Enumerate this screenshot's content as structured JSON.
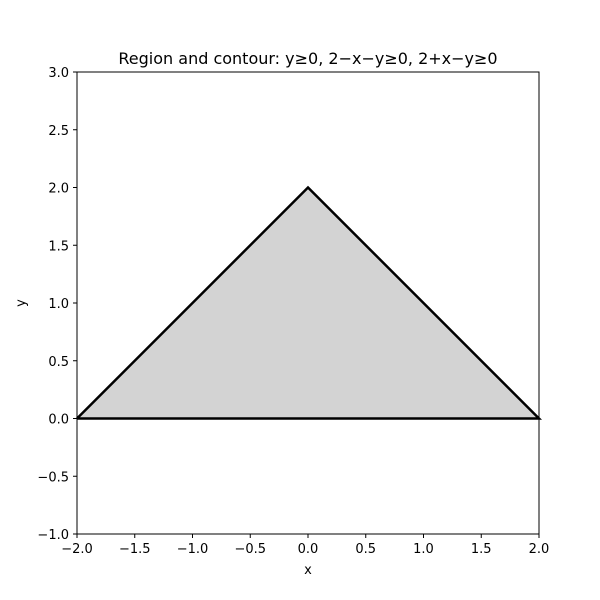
{
  "chart_data": {
    "type": "area",
    "title": "Region and contour: y≥0, 2−x−y≥0, 2+x−y≥0",
    "xlabel": "x",
    "ylabel": "y",
    "xlim": [
      -2.0,
      2.0
    ],
    "ylim": [
      -1.0,
      3.0
    ],
    "xticks": [
      -2.0,
      -1.5,
      -1.0,
      -0.5,
      0.0,
      0.5,
      1.0,
      1.5,
      2.0
    ],
    "yticks": [
      -1.0,
      -0.5,
      0.0,
      0.5,
      1.0,
      1.5,
      2.0,
      2.5,
      3.0
    ],
    "xtick_labels": [
      "−2.0",
      "−1.5",
      "−1.0",
      "−0.5",
      "0.0",
      "0.5",
      "1.0",
      "1.5",
      "2.0"
    ],
    "ytick_labels": [
      "−1.0",
      "−0.5",
      "0.0",
      "0.5",
      "1.0",
      "1.5",
      "2.0",
      "2.5",
      "3.0"
    ],
    "grid": false,
    "region": {
      "fill_color": "#d3d3d3",
      "vertices": [
        [
          -2.0,
          0.0
        ],
        [
          0.0,
          2.0
        ],
        [
          2.0,
          0.0
        ]
      ]
    },
    "contour": {
      "color": "#000000",
      "points": [
        [
          -2.0,
          0.0
        ],
        [
          0.0,
          2.0
        ],
        [
          2.0,
          0.0
        ],
        [
          -2.0,
          0.0
        ]
      ]
    }
  }
}
